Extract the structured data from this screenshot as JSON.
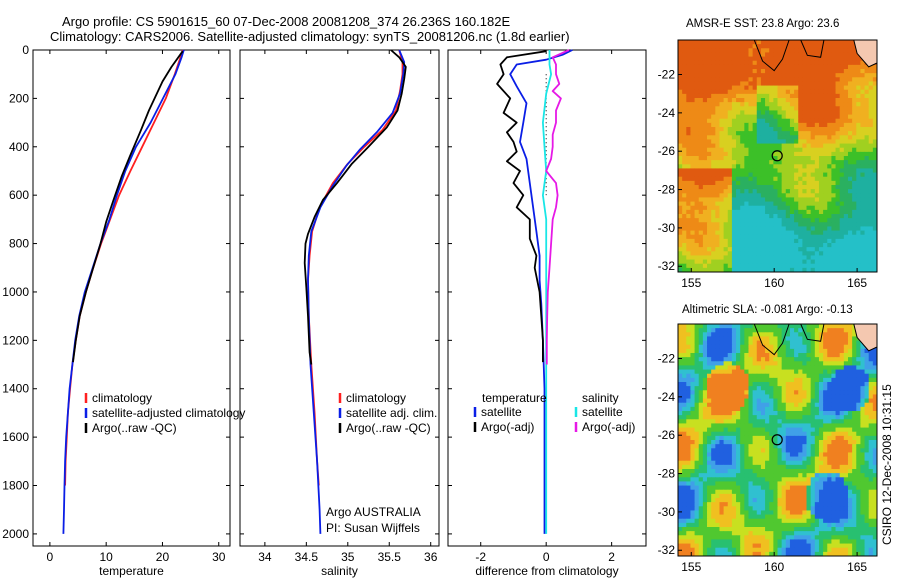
{
  "header": {
    "title_line1": "Argo profile: CS 5901615_60 07-Dec-2008 20081208_374 26.236S 160.182E",
    "title_line2": "Climatology: CARS2006. Satellite-adjusted climatology: synTS_20081206.nc (1.8d earlier)"
  },
  "footer": {
    "credit": "CSIRO 12-Dec-2008 10:31:15"
  },
  "colors": {
    "climatology": "#ff2020",
    "satellite": "#0a1ee6",
    "argo": "#000000",
    "satellite_diff_s": "#19e6e6",
    "argo_diff_s": "#e619e6"
  },
  "chart_data": [
    {
      "type": "line",
      "id": "temperature",
      "xlabel": "temperature",
      "xlim": [
        -3,
        32
      ],
      "ylim": [
        0,
        2050
      ],
      "xticks": [
        0,
        10,
        20,
        30
      ],
      "yticks": [
        0,
        200,
        400,
        600,
        800,
        1000,
        1200,
        1400,
        1600,
        1800,
        2000
      ],
      "legend": [
        "climatology",
        "satellite-adjusted climatology",
        "Argo(..raw -QC)"
      ],
      "series": [
        {
          "name": "climatology",
          "color": "#ff2020",
          "points": [
            [
              23.6,
              0
            ],
            [
              23.2,
              30
            ],
            [
              22.2,
              100
            ],
            [
              20.6,
              200
            ],
            [
              18.5,
              300
            ],
            [
              16.4,
              400
            ],
            [
              14.3,
              500
            ],
            [
              12.3,
              600
            ],
            [
              10.7,
              700
            ],
            [
              9.1,
              800
            ],
            [
              7.7,
              900
            ],
            [
              6.4,
              1000
            ],
            [
              5.3,
              1100
            ],
            [
              4.6,
              1200
            ],
            [
              4.0,
              1300
            ],
            [
              3.6,
              1400
            ],
            [
              3.2,
              1500
            ],
            [
              3.0,
              1600
            ],
            [
              2.8,
              1700
            ],
            [
              2.7,
              1800
            ]
          ]
        },
        {
          "name": "satellite",
          "color": "#0a1ee6",
          "points": [
            [
              23.8,
              0
            ],
            [
              23.4,
              30
            ],
            [
              22.3,
              100
            ],
            [
              20.1,
              200
            ],
            [
              17.9,
              300
            ],
            [
              15.3,
              400
            ],
            [
              13.4,
              500
            ],
            [
              11.9,
              600
            ],
            [
              10.6,
              700
            ],
            [
              9.0,
              800
            ],
            [
              7.6,
              900
            ],
            [
              6.2,
              1000
            ],
            [
              5.2,
              1100
            ],
            [
              4.5,
              1200
            ],
            [
              4.0,
              1300
            ],
            [
              3.5,
              1400
            ],
            [
              3.2,
              1500
            ],
            [
              2.9,
              1600
            ],
            [
              2.7,
              1700
            ],
            [
              2.6,
              1800
            ],
            [
              2.5,
              1900
            ],
            [
              2.4,
              2000
            ]
          ]
        },
        {
          "name": "argo",
          "color": "#000000",
          "points": [
            [
              23.6,
              5
            ],
            [
              21.6,
              70
            ],
            [
              20.0,
              130
            ],
            [
              17.6,
              250
            ],
            [
              16.2,
              330
            ],
            [
              14.2,
              440
            ],
            [
              12.8,
              520
            ],
            [
              11.3,
              620
            ],
            [
              10.0,
              710
            ],
            [
              9.0,
              800
            ],
            [
              7.7,
              900
            ],
            [
              6.4,
              1000
            ],
            [
              5.3,
              1100
            ],
            [
              4.6,
              1200
            ],
            [
              4.1,
              1290
            ]
          ]
        }
      ]
    },
    {
      "type": "line",
      "id": "salinity",
      "xlabel": "salinity",
      "xlim": [
        33.7,
        36.1
      ],
      "ylim": [
        0,
        2050
      ],
      "xticks": [
        34,
        34.5,
        35,
        35.5,
        36
      ],
      "legend": [
        "climatology",
        "satellite adj. clim.",
        "Argo(..raw -QC)"
      ],
      "annotation": [
        "Argo AUSTRALIA",
        "PI: Susan Wijffels"
      ],
      "series": [
        {
          "name": "climatology",
          "color": "#ff2020",
          "points": [
            [
              35.62,
              0
            ],
            [
              35.66,
              50
            ],
            [
              35.66,
              100
            ],
            [
              35.63,
              170
            ],
            [
              35.58,
              250
            ],
            [
              35.42,
              330
            ],
            [
              35.2,
              400
            ],
            [
              35.0,
              470
            ],
            [
              34.82,
              550
            ],
            [
              34.66,
              650
            ],
            [
              34.57,
              750
            ],
            [
              34.54,
              850
            ],
            [
              34.52,
              950
            ],
            [
              34.53,
              1100
            ],
            [
              34.56,
              1300
            ],
            [
              34.6,
              1500
            ],
            [
              34.63,
              1700
            ],
            [
              34.65,
              1800
            ]
          ]
        },
        {
          "name": "satellite",
          "color": "#0a1ee6",
          "points": [
            [
              35.62,
              0
            ],
            [
              35.68,
              50
            ],
            [
              35.67,
              100
            ],
            [
              35.63,
              180
            ],
            [
              35.54,
              260
            ],
            [
              35.35,
              340
            ],
            [
              35.15,
              410
            ],
            [
              34.98,
              480
            ],
            [
              34.82,
              560
            ],
            [
              34.67,
              650
            ],
            [
              34.56,
              750
            ],
            [
              34.53,
              850
            ],
            [
              34.52,
              950
            ],
            [
              34.53,
              1100
            ],
            [
              34.55,
              1300
            ],
            [
              34.59,
              1500
            ],
            [
              34.63,
              1700
            ],
            [
              34.66,
              1900
            ],
            [
              34.67,
              2000
            ]
          ]
        },
        {
          "name": "argo",
          "color": "#000000",
          "points": [
            [
              35.52,
              0
            ],
            [
              35.62,
              30
            ],
            [
              35.7,
              70
            ],
            [
              35.68,
              120
            ],
            [
              35.65,
              180
            ],
            [
              35.6,
              250
            ],
            [
              35.47,
              320
            ],
            [
              35.25,
              400
            ],
            [
              35.05,
              470
            ],
            [
              34.87,
              550
            ],
            [
              34.7,
              620
            ],
            [
              34.6,
              690
            ],
            [
              34.52,
              760
            ],
            [
              34.49,
              800
            ],
            [
              34.48,
              880
            ],
            [
              34.5,
              980
            ],
            [
              34.52,
              1100
            ],
            [
              34.54,
              1250
            ],
            [
              34.56,
              1300
            ]
          ]
        }
      ]
    },
    {
      "type": "line",
      "id": "difference",
      "xlabel": "difference from climatology",
      "xlim": [
        -3,
        3.05
      ],
      "ylim": [
        0,
        2050
      ],
      "xticks": [
        -2,
        0,
        2
      ],
      "legend": [
        "temperature",
        "satellite",
        "Argo(-adj)",
        "salinity",
        "satellite",
        "Argo(-adj)"
      ],
      "series": [
        {
          "name": "temperature satellite",
          "color": "#0a1ee6",
          "points": [
            [
              0.8,
              0
            ],
            [
              0.5,
              20
            ],
            [
              0,
              40
            ],
            [
              -0.9,
              60
            ],
            [
              -1.1,
              100
            ],
            [
              -0.9,
              150
            ],
            [
              -0.6,
              220
            ],
            [
              -0.7,
              300
            ],
            [
              -0.8,
              380
            ],
            [
              -0.6,
              450
            ],
            [
              -0.5,
              550
            ],
            [
              -0.4,
              650
            ],
            [
              -0.3,
              750
            ],
            [
              -0.2,
              850
            ],
            [
              -0.2,
              950
            ],
            [
              -0.15,
              1050
            ],
            [
              -0.1,
              1200
            ],
            [
              -0.05,
              1400
            ],
            [
              -0.05,
              1600
            ],
            [
              -0.05,
              1800
            ],
            [
              -0.05,
              2000
            ]
          ]
        },
        {
          "name": "temperature argo",
          "color": "#000000",
          "points": [
            [
              0,
              5
            ],
            [
              -1.2,
              30
            ],
            [
              -1.4,
              60
            ],
            [
              -1.3,
              100
            ],
            [
              -1.5,
              140
            ],
            [
              -1.1,
              200
            ],
            [
              -1.3,
              260
            ],
            [
              -0.9,
              300
            ],
            [
              -1.2,
              340
            ],
            [
              -1.0,
              380
            ],
            [
              -0.9,
              420
            ],
            [
              -1.2,
              460
            ],
            [
              -0.8,
              500
            ],
            [
              -1.0,
              550
            ],
            [
              -0.7,
              600
            ],
            [
              -0.9,
              650
            ],
            [
              -0.5,
              700
            ],
            [
              -0.5,
              780
            ],
            [
              -0.3,
              850
            ],
            [
              -0.35,
              900
            ],
            [
              -0.2,
              1000
            ],
            [
              -0.15,
              1100
            ],
            [
              -0.1,
              1200
            ],
            [
              -0.1,
              1290
            ]
          ]
        },
        {
          "name": "salinity satellite",
          "color": "#19e6e6",
          "points": [
            [
              0.1,
              0
            ],
            [
              0.1,
              60
            ],
            [
              0.15,
              100
            ],
            [
              0.0,
              180
            ],
            [
              -0.1,
              300
            ],
            [
              -0.05,
              400
            ],
            [
              0.0,
              500
            ],
            [
              -0.1,
              600
            ],
            [
              0.0,
              700
            ],
            [
              0.0,
              800
            ],
            [
              0.0,
              1000
            ],
            [
              0.0,
              1200
            ],
            [
              0.0,
              1400
            ],
            [
              0.0,
              1600
            ],
            [
              0.0,
              1800
            ],
            [
              0.0,
              2000
            ]
          ]
        },
        {
          "name": "salinity argo",
          "color": "#e619e6",
          "points": [
            [
              0.7,
              0
            ],
            [
              0.2,
              30
            ],
            [
              0.3,
              60
            ],
            [
              0.3,
              100
            ],
            [
              0.4,
              140
            ],
            [
              0.2,
              170
            ],
            [
              0.45,
              200
            ],
            [
              0.3,
              250
            ],
            [
              0.3,
              300
            ],
            [
              0.2,
              350
            ],
            [
              0.2,
              400
            ],
            [
              0.15,
              450
            ],
            [
              0.0,
              500
            ],
            [
              0.3,
              550
            ],
            [
              0.35,
              600
            ],
            [
              0.3,
              650
            ],
            [
              0.2,
              700
            ],
            [
              0.15,
              800
            ],
            [
              0.1,
              900
            ],
            [
              0.05,
              1000
            ],
            [
              0.03,
              1100
            ],
            [
              0.02,
              1200
            ],
            [
              0.02,
              1300
            ]
          ]
        }
      ]
    },
    {
      "type": "heatmap",
      "id": "sst-map",
      "title": "AMSR-E SST: 23.8 Argo: 23.6",
      "xlim": [
        154.2,
        166.2
      ],
      "ylim": [
        -32.3,
        -20.2
      ],
      "xticks": [
        155,
        160,
        165
      ],
      "yticks": [
        -22,
        -24,
        -26,
        -28,
        -30,
        -32
      ],
      "marker": [
        160.182,
        -26.236
      ]
    },
    {
      "type": "heatmap",
      "id": "sla-map",
      "title": "Altimetric SLA: -0.081 Argo: -0.13",
      "xlim": [
        154.2,
        166.2
      ],
      "ylim": [
        -32.3,
        -20.2
      ],
      "xticks": [
        155,
        160,
        165
      ],
      "yticks": [
        -22,
        -24,
        -26,
        -28,
        -30,
        -32
      ],
      "marker": [
        160.182,
        -26.236
      ]
    }
  ]
}
